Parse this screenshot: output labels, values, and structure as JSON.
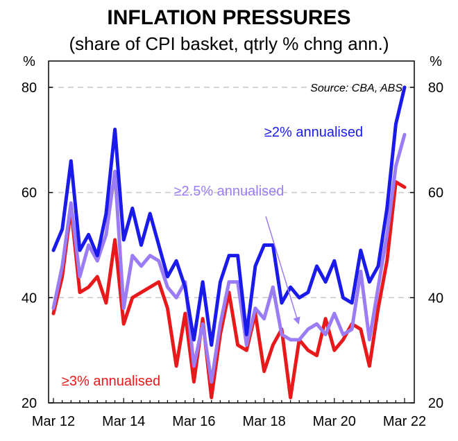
{
  "chart_data": {
    "type": "line",
    "title": "INFLATION PRESSURES",
    "subtitle": "(share of CPI basket, qtrly % chng ann.)",
    "ylabel_left": "%",
    "ylabel_right": "%",
    "source": "Source: CBA, ABS",
    "ylim": [
      20,
      85
    ],
    "yticks": [
      20,
      40,
      60,
      80
    ],
    "gridlines": [
      40,
      60,
      80
    ],
    "xticks": [
      {
        "label": "Mar 12",
        "index": 0
      },
      {
        "label": "Mar 14",
        "index": 8
      },
      {
        "label": "Mar 16",
        "index": 16
      },
      {
        "label": "Mar 18",
        "index": 24
      },
      {
        "label": "Mar 20",
        "index": 32
      },
      {
        "label": "Mar 22",
        "index": 40
      }
    ],
    "series": [
      {
        "name": "≥2% annualised",
        "color": "#1a1aeb",
        "values": [
          49,
          53,
          66,
          49,
          52,
          48,
          56,
          72,
          51,
          57,
          50,
          56,
          50,
          44,
          47,
          42,
          32,
          43,
          31,
          43,
          48,
          48,
          33,
          46,
          50,
          50,
          39,
          42,
          40,
          41,
          46,
          43,
          47,
          40,
          39,
          49,
          43,
          46,
          57,
          73,
          80
        ]
      },
      {
        "name": "≥2.5% annualised",
        "color": "#9b7cf4",
        "values": [
          38,
          46,
          58,
          44,
          50,
          47,
          52,
          64,
          38,
          48,
          46,
          48,
          47,
          42,
          40,
          43,
          27,
          35,
          24,
          35,
          43,
          43,
          31,
          38,
          36,
          42,
          33,
          32,
          32,
          34,
          35,
          33,
          37,
          33,
          34,
          45,
          32,
          42,
          52,
          65,
          71
        ]
      },
      {
        "name": "≥3% annualised",
        "color": "#e8191a",
        "values": [
          37,
          44,
          57,
          41,
          42,
          44,
          39,
          51,
          35,
          40,
          41,
          42,
          43,
          38,
          27,
          37,
          24,
          36,
          21,
          33,
          41,
          31,
          30,
          37,
          26,
          31,
          34,
          21,
          32,
          30,
          29,
          36,
          30,
          32,
          35,
          34,
          27,
          38,
          47,
          62,
          61
        ]
      }
    ],
    "annotations": [
      {
        "text": "≥2% annualised",
        "series": 0
      },
      {
        "text": "≥2.5% annualised",
        "series": 1
      },
      {
        "text": "≥3% annualised",
        "series": 2
      }
    ]
  }
}
